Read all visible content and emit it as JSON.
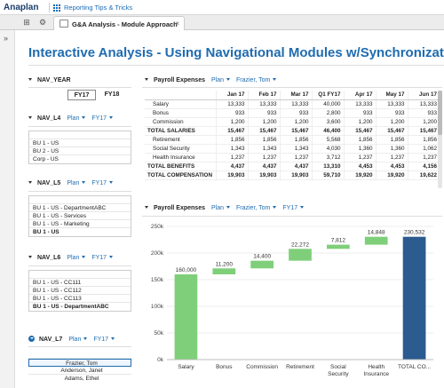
{
  "topbar": {
    "logo": "Anaplan",
    "crumb": "Reporting Tips & Tricks"
  },
  "tabbar": {
    "tab_label": "G&A Analysis - Module Approach",
    "expand": "»",
    "close": "×"
  },
  "page": {
    "title": "Interactive Analysis - Using Navigational Modules w/Synchronization"
  },
  "nav_year": {
    "header": "NAV_YEAR",
    "years": [
      "FY17",
      "FY18"
    ],
    "selected": "FY17"
  },
  "nav_l4": {
    "header": "NAV_L4",
    "dd1": "Plan",
    "dd2": "FY17",
    "items": [
      "BU 1 - US",
      "BU 2 - US",
      "Corp - US"
    ]
  },
  "nav_l5": {
    "header": "NAV_L5",
    "dd1": "Plan",
    "dd2": "FY17",
    "items": [
      "BU 1 - US - DepartmentABC",
      "BU 1 - US - Services",
      "BU 1 - US - Marketing",
      "BU 1 - US"
    ]
  },
  "nav_l6": {
    "header": "NAV_L6",
    "dd1": "Plan",
    "dd2": "FY17",
    "items": [
      "BU 1 - US - CC111",
      "BU 1 - US - CC112",
      "BU 1 - US - CC113",
      "BU 1 - US - DepartmentABC"
    ]
  },
  "nav_l7": {
    "header": "NAV_L7",
    "dd1": "Plan",
    "dd2": "FY17",
    "items": [
      "Frazier, Tom",
      "Anderson, Janet",
      "Adams, Ethel"
    ]
  },
  "payroll_grid": {
    "header": "Payroll Expenses",
    "dd1": "Plan",
    "dd2": "Frazier, Tom",
    "columns": [
      "Jan 17",
      "Feb 17",
      "Mar 17",
      "Q1 FY17",
      "Apr 17",
      "May 17",
      "Jun 17"
    ],
    "rows": [
      {
        "label": "Salary",
        "values": [
          "13,333",
          "13,333",
          "13,333",
          "40,000",
          "13,333",
          "13,333",
          "13,333"
        ]
      },
      {
        "label": "Bonus",
        "values": [
          "933",
          "933",
          "933",
          "2,800",
          "933",
          "933",
          "933"
        ]
      },
      {
        "label": "Commission",
        "values": [
          "1,200",
          "1,200",
          "1,200",
          "3,600",
          "1,200",
          "1,200",
          "1,200"
        ]
      },
      {
        "label": "TOTAL SALARIES",
        "values": [
          "15,467",
          "15,467",
          "15,467",
          "46,400",
          "15,467",
          "15,467",
          "15,467"
        ]
      },
      {
        "label": "Retirement",
        "values": [
          "1,856",
          "1,856",
          "1,856",
          "5,568",
          "1,856",
          "1,856",
          "1,856"
        ]
      },
      {
        "label": "Social Security",
        "values": [
          "1,343",
          "1,343",
          "1,343",
          "4,030",
          "1,360",
          "1,360",
          "1,062"
        ]
      },
      {
        "label": "Health Insurance",
        "values": [
          "1,237",
          "1,237",
          "1,237",
          "3,712",
          "1,237",
          "1,237",
          "1,237"
        ]
      },
      {
        "label": "TOTAL BENEFITS",
        "values": [
          "4,437",
          "4,437",
          "4,437",
          "13,310",
          "4,453",
          "4,453",
          "4,156"
        ]
      },
      {
        "label": "TOTAL COMPENSATION",
        "values": [
          "19,903",
          "19,903",
          "19,903",
          "59,710",
          "19,920",
          "19,920",
          "19,622"
        ]
      }
    ]
  },
  "payroll_chart": {
    "header": "Payroll Expenses",
    "dd1": "Plan",
    "dd2": "Frazier, Tom",
    "dd3": "FY17"
  },
  "chart_data": {
    "type": "bar",
    "subtype": "waterfall",
    "categories": [
      "Salary",
      "Bonus",
      "Commission",
      "Retirement",
      "Social Security",
      "Health Insurance",
      "TOTAL CO..."
    ],
    "values": [
      160000,
      11200,
      14400,
      22272,
      7812,
      14848,
      230532
    ],
    "data_labels": [
      "160,000",
      "11,200",
      "14,400",
      "22,272",
      "7,812",
      "14,848",
      "230,532"
    ],
    "ylim": [
      0,
      250000
    ],
    "yticks": [
      "0k",
      "50k",
      "100k",
      "150k",
      "200k",
      "250k"
    ],
    "colors": {
      "step": "#7fcf7a",
      "total": "#2b5b8f"
    }
  }
}
